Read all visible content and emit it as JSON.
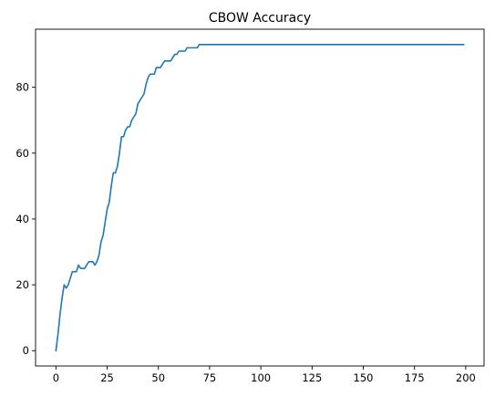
{
  "chart_data": {
    "type": "line",
    "title": "CBOW Accuracy",
    "xlabel": "",
    "ylabel": "",
    "xlim": [
      -9.95,
      208.95
    ],
    "ylim": [
      -4.65,
      97.65
    ],
    "xticks": [
      0,
      25,
      50,
      75,
      100,
      125,
      150,
      175,
      200
    ],
    "yticks": [
      0,
      20,
      40,
      60,
      80
    ],
    "grid": false,
    "series": [
      {
        "color": "#1f77b4",
        "x": [
          0,
          1,
          2,
          3,
          4,
          5,
          6,
          7,
          8,
          9,
          10,
          11,
          12,
          13,
          14,
          15,
          16,
          17,
          18,
          19,
          20,
          21,
          22,
          23,
          24,
          25,
          26,
          27,
          28,
          29,
          30,
          31,
          32,
          33,
          34,
          35,
          36,
          37,
          38,
          39,
          40,
          41,
          42,
          43,
          44,
          45,
          46,
          47,
          48,
          49,
          50,
          51,
          52,
          53,
          54,
          55,
          56,
          57,
          58,
          59,
          60,
          61,
          62,
          63,
          64,
          65,
          66,
          67,
          68,
          69,
          70,
          71,
          199
        ],
        "values": [
          0,
          5,
          11,
          16,
          20,
          19,
          20,
          22,
          24,
          24,
          24,
          26,
          25,
          25,
          25,
          26,
          27,
          27,
          27,
          26,
          27,
          29,
          33,
          35,
          39,
          43,
          45,
          50,
          54,
          54,
          56,
          60,
          65,
          65,
          67,
          68,
          68,
          70,
          71,
          72,
          75,
          76,
          77,
          78,
          81,
          83,
          84,
          84,
          84,
          86,
          86,
          86,
          87,
          88,
          88,
          88,
          88,
          89,
          90,
          90,
          91,
          91,
          91,
          91,
          92,
          92,
          92,
          92,
          92,
          92,
          93,
          93,
          93
        ]
      }
    ]
  }
}
